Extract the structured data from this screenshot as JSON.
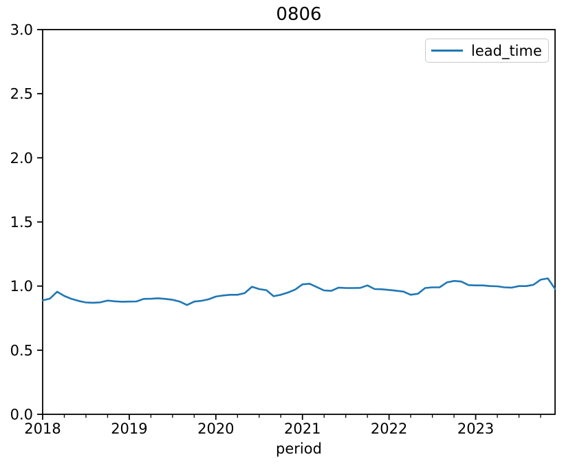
{
  "figure": {
    "background": "#ffffff"
  },
  "chart_data": {
    "type": "line",
    "title": "0806",
    "xlabel": "period",
    "ylabel": "",
    "ylim": [
      0.0,
      3.0
    ],
    "yticks": [
      0.0,
      0.5,
      1.0,
      1.5,
      2.0,
      2.5,
      3.0
    ],
    "xtick_labels": [
      "2018",
      "2019",
      "2020",
      "2021",
      "2022",
      "2023"
    ],
    "minor_xticks": "quarterly",
    "grid": false,
    "legend": {
      "position": "upper right",
      "entries": [
        "lead_time"
      ]
    },
    "line_color": "#1f77b4",
    "series": [
      {
        "name": "lead_time",
        "color": "#1f77b4",
        "x": [
          "2018-01",
          "2018-02",
          "2018-03",
          "2018-04",
          "2018-05",
          "2018-06",
          "2018-07",
          "2018-08",
          "2018-09",
          "2018-10",
          "2018-11",
          "2018-12",
          "2019-01",
          "2019-02",
          "2019-03",
          "2019-04",
          "2019-05",
          "2019-06",
          "2019-07",
          "2019-08",
          "2019-09",
          "2019-10",
          "2019-11",
          "2019-12",
          "2020-01",
          "2020-02",
          "2020-03",
          "2020-04",
          "2020-05",
          "2020-06",
          "2020-07",
          "2020-08",
          "2020-09",
          "2020-10",
          "2020-11",
          "2020-12",
          "2021-01",
          "2021-02",
          "2021-03",
          "2021-04",
          "2021-05",
          "2021-06",
          "2021-07",
          "2021-08",
          "2021-09",
          "2021-10",
          "2021-11",
          "2021-12",
          "2022-01",
          "2022-02",
          "2022-03",
          "2022-04",
          "2022-05",
          "2022-06",
          "2022-07",
          "2022-08",
          "2022-09",
          "2022-10",
          "2022-11",
          "2022-12",
          "2023-01",
          "2023-02",
          "2023-03",
          "2023-04",
          "2023-05",
          "2023-06",
          "2023-07",
          "2023-08",
          "2023-09",
          "2023-10",
          "2023-11",
          "2023-12"
        ],
        "values": [
          0.888,
          0.902,
          0.956,
          0.923,
          0.9,
          0.884,
          0.872,
          0.87,
          0.873,
          0.887,
          0.881,
          0.878,
          0.879,
          0.88,
          0.9,
          0.901,
          0.905,
          0.9,
          0.893,
          0.879,
          0.852,
          0.879,
          0.885,
          0.897,
          0.918,
          0.927,
          0.932,
          0.932,
          0.945,
          0.995,
          0.977,
          0.968,
          0.921,
          0.932,
          0.95,
          0.973,
          1.013,
          1.018,
          0.992,
          0.966,
          0.963,
          0.988,
          0.985,
          0.985,
          0.986,
          1.005,
          0.977,
          0.975,
          0.97,
          0.964,
          0.957,
          0.932,
          0.94,
          0.985,
          0.99,
          0.99,
          1.028,
          1.04,
          1.035,
          1.008,
          1.005,
          1.005,
          1.0,
          0.998,
          0.99,
          0.988,
          1.0,
          1.0,
          1.01,
          1.05,
          1.06,
          0.978
        ]
      }
    ]
  }
}
